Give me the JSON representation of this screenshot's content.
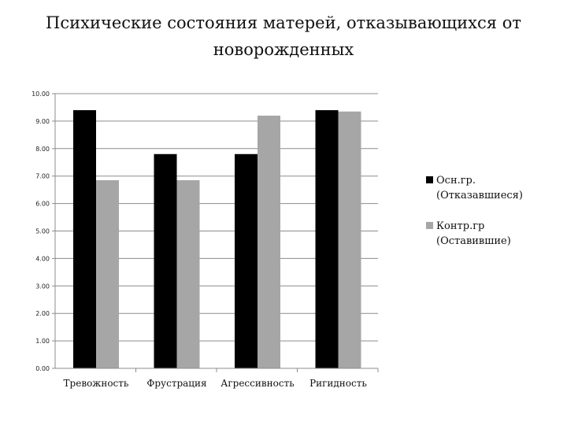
{
  "title_lines": [
    "Психические состояния матерей, отказывающихся от",
    "новорожденных"
  ],
  "chart_data": {
    "type": "bar",
    "title": "Психические состояния матерей, отказывающихся от новорожденных",
    "categories": [
      "Тревожность",
      "Фрустрация",
      "Агрессивность",
      "Ригидность"
    ],
    "series": [
      {
        "name_lines": [
          "Осн.гр.",
          "(Отказавшиеся)"
        ],
        "color": "#000000",
        "values": [
          9.4,
          7.8,
          7.8,
          9.4
        ]
      },
      {
        "name_lines": [
          "Контр.гр",
          "(Оставившие)"
        ],
        "color": "#a6a6a6",
        "values": [
          6.85,
          6.85,
          9.2,
          9.35
        ]
      }
    ],
    "yticks": [
      "0.00",
      "1.00",
      "2.00",
      "3.00",
      "4.00",
      "5.00",
      "6.00",
      "7.00",
      "8.00",
      "9.00",
      "10.00"
    ],
    "ylim": [
      0,
      10
    ],
    "grid": true,
    "legend": "right"
  }
}
